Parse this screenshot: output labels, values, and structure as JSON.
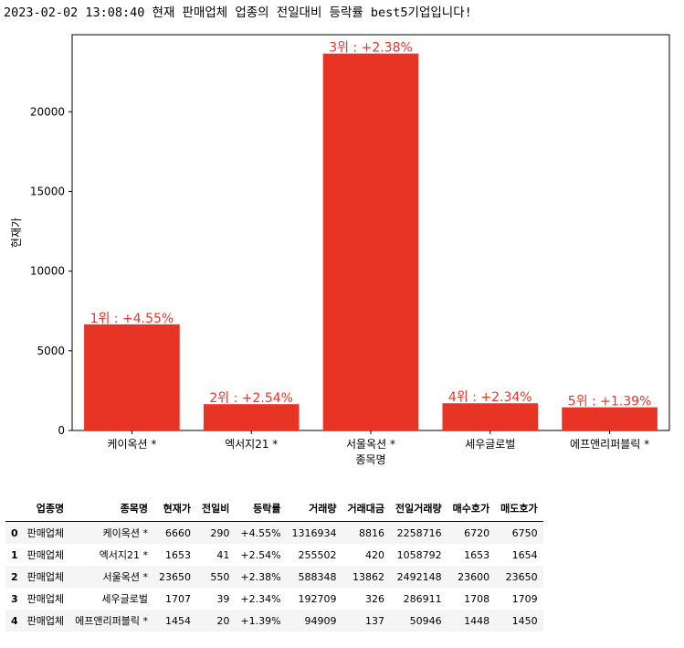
{
  "title": "2023-02-02 13:08:40 현재 판매업체 업종의 전일대비 등락률 best5기업입니다!",
  "colors": {
    "bar": "#e83425",
    "label": "#e83425"
  },
  "chart_data": {
    "type": "bar",
    "categories": [
      "케이옥션 *",
      "엑서지21 *",
      "서울옥션 *",
      "세우글로벌",
      "에프앤리퍼블릭 *"
    ],
    "values": [
      6660,
      1653,
      23650,
      1707,
      1454
    ],
    "bar_labels": [
      "1위 : +4.55%",
      "2위 : +2.54%",
      "3위 : +2.38%",
      "4위 : +2.34%",
      "5위 : +1.39%"
    ],
    "xlabel": "종목명",
    "ylabel": "현재가",
    "yticks": [
      0,
      5000,
      10000,
      15000,
      20000
    ],
    "ylim": [
      0,
      24833
    ]
  },
  "table": {
    "columns": [
      "업종명",
      "종목명",
      "현재가",
      "전일비",
      "등락률",
      "거래량",
      "거래대금",
      "전일거래량",
      "매수호가",
      "매도호가"
    ],
    "rows": [
      {
        "index": "0",
        "cells": [
          "판매업체",
          "케이옥션 *",
          "6660",
          "290",
          "+4.55%",
          "1316934",
          "8816",
          "2258716",
          "6720",
          "6750"
        ]
      },
      {
        "index": "1",
        "cells": [
          "판매업체",
          "엑서지21 *",
          "1653",
          "41",
          "+2.54%",
          "255502",
          "420",
          "1058792",
          "1653",
          "1654"
        ]
      },
      {
        "index": "2",
        "cells": [
          "판매업체",
          "서울옥션 *",
          "23650",
          "550",
          "+2.38%",
          "588348",
          "13862",
          "2492148",
          "23600",
          "23650"
        ]
      },
      {
        "index": "3",
        "cells": [
          "판매업체",
          "세우글로벌",
          "1707",
          "39",
          "+2.34%",
          "192709",
          "326",
          "286911",
          "1708",
          "1709"
        ]
      },
      {
        "index": "4",
        "cells": [
          "판매업체",
          "에프앤리퍼블릭 *",
          "1454",
          "20",
          "+1.39%",
          "94909",
          "137",
          "50946",
          "1448",
          "1450"
        ]
      }
    ]
  }
}
